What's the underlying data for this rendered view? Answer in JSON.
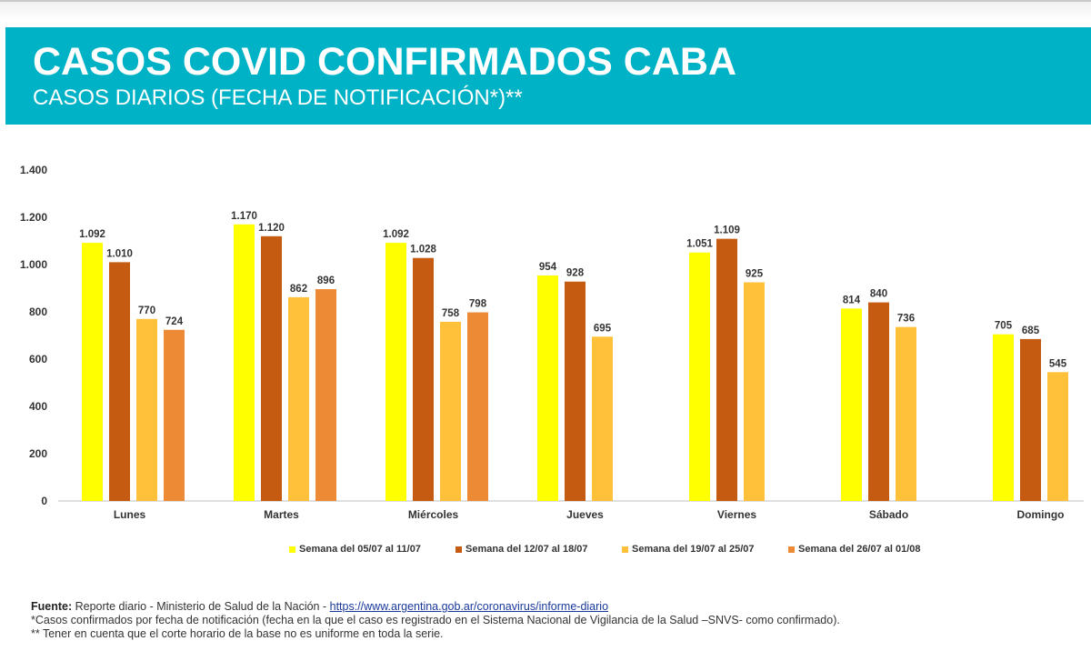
{
  "header": {
    "title": "CASOS COVID CONFIRMADOS CABA",
    "subtitle": "CASOS DIARIOS (FECHA DE NOTIFICACIÓN*)**"
  },
  "colors": {
    "header_bg": "#00b2c6",
    "series": [
      "#ffff00",
      "#c55a11",
      "#ffc13a",
      "#ed8a36"
    ]
  },
  "chart_data": {
    "type": "bar",
    "title": "",
    "xlabel": "",
    "ylabel": "",
    "ylim": [
      0,
      1400
    ],
    "yticks": [
      0,
      200,
      400,
      600,
      800,
      1000,
      1200,
      1400
    ],
    "ytick_labels": [
      "0",
      "200",
      "400",
      "600",
      "800",
      "1.000",
      "1.200",
      "1.400"
    ],
    "grid": false,
    "legend_position": "bottom",
    "categories": [
      "Lunes",
      "Martes",
      "Miércoles",
      "Jueves",
      "Viernes",
      "Sábado",
      "Domingo"
    ],
    "series": [
      {
        "name": "Semana del 05/07 al 11/07",
        "values": [
          1092,
          1170,
          1092,
          954,
          1051,
          814,
          705
        ],
        "labels": [
          "1.092",
          "1.170",
          "1.092",
          "954",
          "1.051",
          "814",
          "705"
        ]
      },
      {
        "name": "Semana del 12/07 al 18/07",
        "values": [
          1010,
          1120,
          1028,
          928,
          1109,
          840,
          685
        ],
        "labels": [
          "1.010",
          "1.120",
          "1.028",
          "928",
          "1.109",
          "840",
          "685"
        ]
      },
      {
        "name": "Semana del 19/07 al 25/07",
        "values": [
          770,
          862,
          758,
          695,
          925,
          736,
          545
        ],
        "labels": [
          "770",
          "862",
          "758",
          "695",
          "925",
          "736",
          "545"
        ]
      },
      {
        "name": "Semana del 26/07 al 01/08",
        "values": [
          724,
          896,
          798,
          null,
          null,
          null,
          null
        ],
        "labels": [
          "724",
          "896",
          "798",
          null,
          null,
          null,
          null
        ]
      }
    ]
  },
  "footer": {
    "source_label": "Fuente:",
    "source_text": " Reporte diario - Ministerio de Salud de la Nación - ",
    "source_link": "https://www.argentina.gob.ar/coronavirus/informe-diario",
    "note1": "*Casos confirmados por fecha de notificación (fecha en la que el caso es registrado en el Sistema Nacional de Vigilancia de la Salud –SNVS- como confirmado).",
    "note2": "** Tener en cuenta que el corte horario de la base no es uniforme en toda la serie."
  }
}
